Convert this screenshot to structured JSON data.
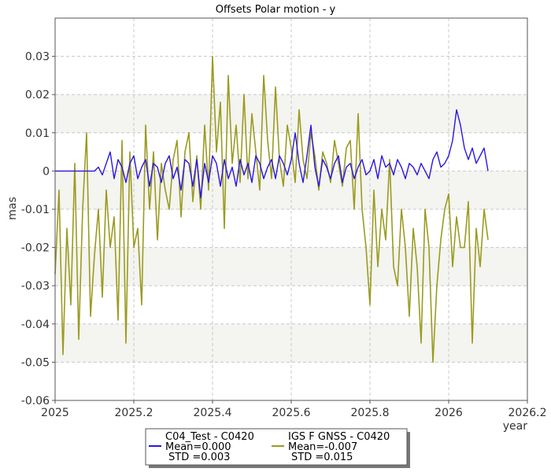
{
  "chart_data": {
    "type": "line",
    "title": "Offsets Polar motion - y",
    "xlabel": "year",
    "ylabel": "mas",
    "xlim": [
      2025.0,
      2026.2
    ],
    "ylim": [
      -0.06,
      0.04
    ],
    "x_ticks": [
      2025.0,
      2025.2,
      2025.4,
      2025.6,
      2025.8,
      2026.0,
      2026.2
    ],
    "x_tick_labels": [
      "2025",
      "2025.2",
      "2025.4",
      "2025.6",
      "2025.8",
      "2026",
      "2026.2"
    ],
    "y_ticks": [
      -0.06,
      -0.05,
      -0.04,
      -0.03,
      -0.02,
      -0.01,
      0,
      0.01,
      0.02,
      0.03
    ],
    "y_tick_labels": [
      "-0.06",
      "-0.05",
      "-0.04",
      "-0.03",
      "-0.02",
      "-0.01",
      "0",
      "0.01",
      "0.02",
      "0.03"
    ],
    "grid": true,
    "bands": [
      [
        -0.05,
        -0.04
      ],
      [
        -0.03,
        -0.02
      ],
      [
        -0.01,
        0.0
      ],
      [
        0.01,
        0.02
      ]
    ],
    "band_color": "#f4f4f0",
    "legend_position": "bottom-center",
    "series": [
      {
        "name": "C04_Test - C0420",
        "color": "#2a16e0",
        "mean_label": "Mean=0.000",
        "std_label": "STD =0.003",
        "x": [
          2025.0,
          2025.02,
          2025.04,
          2025.06,
          2025.08,
          2025.1,
          2025.11,
          2025.12,
          2025.13,
          2025.14,
          2025.15,
          2025.16,
          2025.17,
          2025.18,
          2025.19,
          2025.2,
          2025.21,
          2025.22,
          2025.23,
          2025.24,
          2025.25,
          2025.26,
          2025.27,
          2025.28,
          2025.29,
          2025.3,
          2025.31,
          2025.32,
          2025.33,
          2025.34,
          2025.35,
          2025.36,
          2025.37,
          2025.38,
          2025.39,
          2025.4,
          2025.41,
          2025.42,
          2025.43,
          2025.44,
          2025.45,
          2025.46,
          2025.47,
          2025.48,
          2025.49,
          2025.5,
          2025.51,
          2025.52,
          2025.53,
          2025.54,
          2025.55,
          2025.56,
          2025.57,
          2025.58,
          2025.59,
          2025.6,
          2025.61,
          2025.62,
          2025.63,
          2025.64,
          2025.65,
          2025.66,
          2025.67,
          2025.68,
          2025.69,
          2025.7,
          2025.71,
          2025.72,
          2025.73,
          2025.74,
          2025.75,
          2025.76,
          2025.77,
          2025.78,
          2025.79,
          2025.8,
          2025.81,
          2025.82,
          2025.83,
          2025.84,
          2025.85,
          2025.86,
          2025.87,
          2025.88,
          2025.89,
          2025.9,
          2025.91,
          2025.92,
          2025.93,
          2025.94,
          2025.95,
          2025.96,
          2025.97,
          2025.98,
          2025.99,
          2026.0,
          2026.01,
          2026.02,
          2026.03,
          2026.04,
          2026.05,
          2026.06,
          2026.07,
          2026.08,
          2026.09,
          2026.1
        ],
        "y": [
          0.0,
          0.0,
          0.0,
          0.0,
          0.0,
          0.0,
          0.001,
          -0.001,
          0.002,
          0.005,
          -0.002,
          0.003,
          0.001,
          -0.003,
          0.002,
          0.004,
          -0.002,
          0.001,
          0.003,
          -0.004,
          0.002,
          0.001,
          -0.003,
          0.002,
          0.004,
          -0.002,
          0.001,
          -0.005,
          0.003,
          0.002,
          -0.004,
          0.003,
          -0.007,
          0.002,
          -0.003,
          0.004,
          0.002,
          -0.004,
          0.003,
          -0.002,
          0.001,
          -0.004,
          0.003,
          -0.001,
          0.002,
          -0.003,
          0.004,
          0.002,
          -0.002,
          0.001,
          0.003,
          -0.002,
          0.004,
          0.002,
          -0.001,
          0.003,
          0.01,
          0.002,
          -0.003,
          0.004,
          0.012,
          0.001,
          -0.004,
          0.003,
          0.001,
          -0.002,
          0.002,
          0.004,
          -0.003,
          0.001,
          0.002,
          -0.002,
          0.001,
          0.003,
          -0.001,
          0.0,
          0.003,
          -0.002,
          0.004,
          0.001,
          0.002,
          -0.001,
          0.003,
          0.001,
          -0.002,
          0.002,
          0.001,
          -0.001,
          0.002,
          0.0,
          -0.002,
          0.003,
          0.005,
          0.001,
          0.002,
          0.004,
          0.008,
          0.016,
          0.012,
          0.006,
          0.003,
          0.006,
          0.002,
          0.004,
          0.006,
          0.0
        ]
      },
      {
        "name": "IGS F GNSS - C0420",
        "color": "#9b9b22",
        "mean_label": "Mean=-0.007",
        "std_label": "STD =0.015",
        "x": [
          2025.0,
          2025.01,
          2025.02,
          2025.03,
          2025.04,
          2025.05,
          2025.06,
          2025.07,
          2025.08,
          2025.09,
          2025.1,
          2025.11,
          2025.12,
          2025.13,
          2025.14,
          2025.15,
          2025.16,
          2025.17,
          2025.18,
          2025.19,
          2025.2,
          2025.21,
          2025.22,
          2025.23,
          2025.24,
          2025.25,
          2025.26,
          2025.27,
          2025.28,
          2025.29,
          2025.3,
          2025.31,
          2025.32,
          2025.33,
          2025.34,
          2025.35,
          2025.36,
          2025.37,
          2025.38,
          2025.39,
          2025.4,
          2025.41,
          2025.42,
          2025.43,
          2025.44,
          2025.45,
          2025.46,
          2025.47,
          2025.48,
          2025.49,
          2025.5,
          2025.51,
          2025.52,
          2025.53,
          2025.54,
          2025.55,
          2025.56,
          2025.57,
          2025.58,
          2025.59,
          2025.6,
          2025.61,
          2025.62,
          2025.63,
          2025.64,
          2025.65,
          2025.66,
          2025.67,
          2025.68,
          2025.69,
          2025.7,
          2025.71,
          2025.72,
          2025.73,
          2025.74,
          2025.75,
          2025.76,
          2025.77,
          2025.78,
          2025.79,
          2025.8,
          2025.81,
          2025.82,
          2025.83,
          2025.84,
          2025.85,
          2025.86,
          2025.87,
          2025.88,
          2025.89,
          2025.9,
          2025.91,
          2025.92,
          2025.93,
          2025.94,
          2025.95,
          2025.96,
          2025.97,
          2025.98,
          2025.99,
          2026.0,
          2026.01,
          2026.02,
          2026.03,
          2026.04,
          2026.05,
          2026.06,
          2026.07,
          2026.08,
          2026.09,
          2026.1
        ],
        "y": [
          -0.027,
          -0.005,
          -0.048,
          -0.015,
          -0.035,
          0.002,
          -0.044,
          -0.01,
          0.01,
          -0.038,
          -0.022,
          -0.01,
          -0.033,
          -0.005,
          -0.02,
          -0.012,
          -0.039,
          0.008,
          -0.045,
          0.005,
          -0.02,
          -0.015,
          -0.035,
          0.012,
          -0.01,
          0.005,
          -0.018,
          0.002,
          -0.005,
          -0.01,
          0.003,
          0.008,
          -0.012,
          0.005,
          0.01,
          -0.008,
          0.004,
          -0.01,
          0.012,
          -0.005,
          0.03,
          0.005,
          0.018,
          -0.015,
          0.025,
          0.002,
          0.012,
          -0.003,
          0.02,
          -0.002,
          0.015,
          0.005,
          -0.005,
          0.025,
          0.008,
          -0.002,
          0.022,
          0.003,
          -0.004,
          0.012,
          0.006,
          -0.003,
          0.016,
          0.003,
          -0.002,
          0.01,
          0.004,
          -0.005,
          0.005,
          0.002,
          -0.003,
          0.008,
          0.002,
          -0.004,
          0.006,
          0.008,
          -0.01,
          0.015,
          -0.01,
          -0.02,
          -0.035,
          -0.005,
          -0.025,
          -0.01,
          -0.018,
          0.003,
          -0.025,
          -0.03,
          -0.01,
          -0.02,
          -0.038,
          -0.015,
          -0.025,
          -0.045,
          -0.01,
          -0.02,
          -0.05,
          -0.03,
          -0.018,
          -0.01,
          -0.006,
          -0.025,
          -0.012,
          -0.02,
          -0.02,
          -0.008,
          -0.045,
          -0.015,
          -0.025,
          -0.01,
          -0.018
        ]
      }
    ]
  }
}
